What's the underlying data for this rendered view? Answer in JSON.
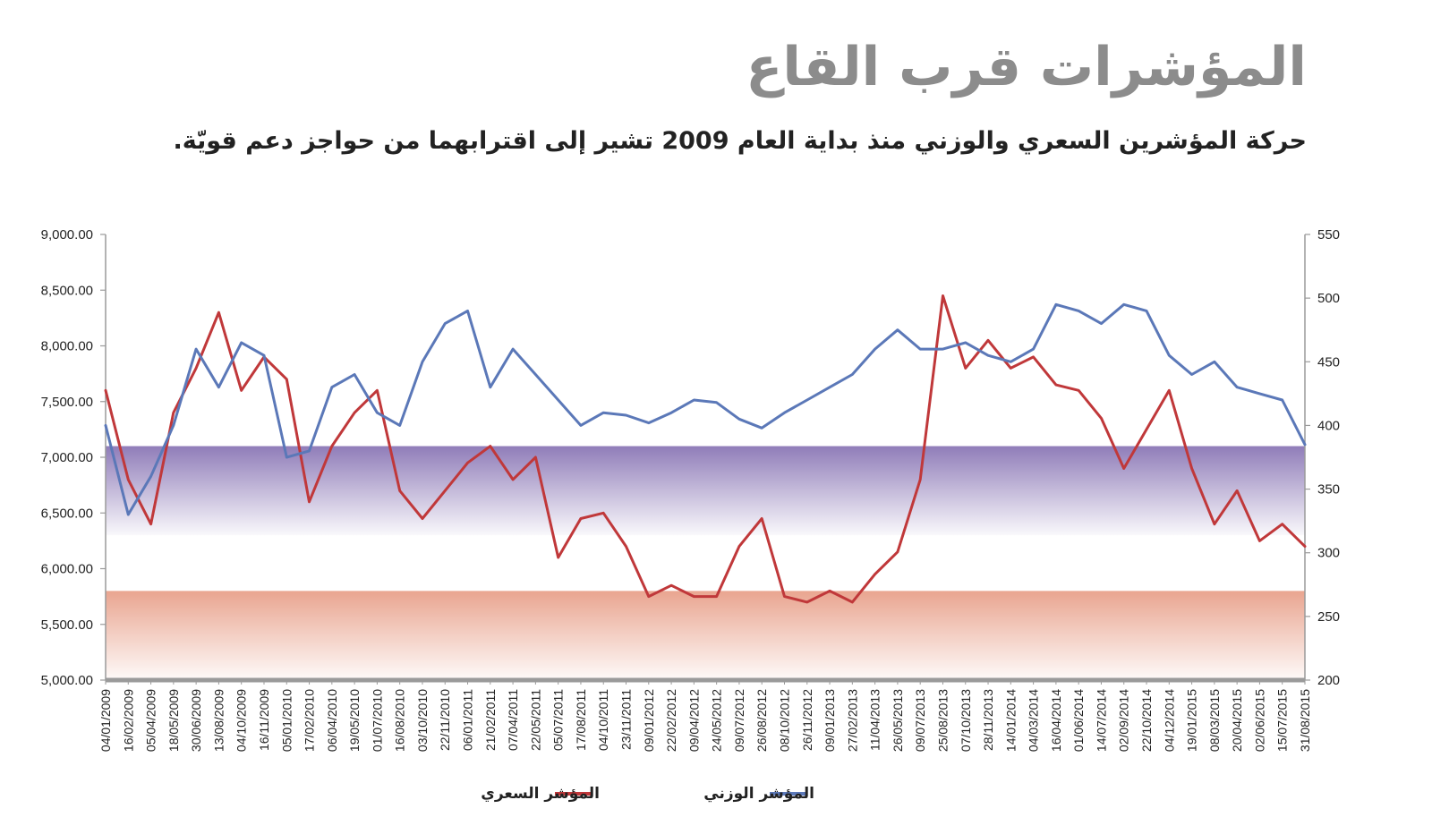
{
  "header": {
    "title": "المؤشرات قرب القاع",
    "subtitle": "حركة المؤشرين السعري والوزني منذ بداية العام 2009 تشير إلى اقترابهما من حواجز دعم قويّة."
  },
  "chart_data": {
    "type": "line",
    "title": "المؤشرات قرب القاع",
    "subtitle": "حركة المؤشرين السعري والوزني منذ بداية العام 2009 تشير إلى اقترابهما من حواجز دعم قويّة.",
    "x_labels": [
      "04/01/2009",
      "16/02/2009",
      "05/04/2009",
      "18/05/2009",
      "30/06/2009",
      "13/08/2009",
      "04/10/2009",
      "16/11/2009",
      "05/01/2010",
      "17/02/2010",
      "06/04/2010",
      "19/05/2010",
      "01/07/2010",
      "16/08/2010",
      "03/10/2010",
      "22/11/2010",
      "06/01/2011",
      "21/02/2011",
      "07/04/2011",
      "22/05/2011",
      "05/07/2011",
      "17/08/2011",
      "04/10/2011",
      "23/11/2011",
      "09/01/2012",
      "22/02/2012",
      "09/04/2012",
      "24/05/2012",
      "09/07/2012",
      "26/08/2012",
      "08/10/2012",
      "26/11/2012",
      "09/01/2013",
      "27/02/2013",
      "11/04/2013",
      "26/05/2013",
      "09/07/2013",
      "25/08/2013",
      "07/10/2013",
      "28/11/2013",
      "14/01/2014",
      "04/03/2014",
      "16/04/2014",
      "01/06/2014",
      "14/07/2014",
      "02/09/2014",
      "22/10/2014",
      "04/12/2014",
      "19/01/2015",
      "08/03/2015",
      "20/04/2015",
      "02/06/2015",
      "15/07/2015",
      "31/08/2015"
    ],
    "y_left": {
      "min": 5000,
      "max": 9000,
      "step": 500,
      "tick_labels": [
        "5,000.00",
        "5,500.00",
        "6,000.00",
        "6,500.00",
        "7,000.00",
        "7,500.00",
        "8,000.00",
        "8,500.00",
        "9,000.00"
      ]
    },
    "y_right": {
      "min": 200,
      "max": 550,
      "step": 50,
      "tick_labels": [
        "200",
        "250",
        "300",
        "350",
        "400",
        "450",
        "500",
        "550"
      ]
    },
    "bands": [
      {
        "axis": "left",
        "from": 5000,
        "to": 5800,
        "color": "#e8a08a"
      },
      {
        "axis": "left",
        "from": 6300,
        "to": 7100,
        "color": "#8a76b5"
      }
    ],
    "series": [
      {
        "name": "المؤشر السعري",
        "axis": "left",
        "color": "#c0383a",
        "values": [
          7600,
          6800,
          6400,
          7400,
          7800,
          8300,
          7600,
          7900,
          7700,
          6600,
          7100,
          7400,
          7600,
          6700,
          6450,
          6700,
          6950,
          7100,
          6800,
          7000,
          6100,
          6450,
          6500,
          6200,
          5750,
          5850,
          5750,
          5750,
          6200,
          6450,
          5750,
          5700,
          5800,
          5700,
          5950,
          6150,
          6800,
          8450,
          7800,
          8050,
          7800,
          7900,
          7650,
          7600,
          7350,
          6900,
          7250,
          7600,
          6900,
          6400,
          6700,
          6250,
          6400,
          6200
        ]
      },
      {
        "name": "المؤشر الوزني",
        "axis": "right",
        "color": "#5b78b8",
        "values": [
          400,
          330,
          360,
          400,
          460,
          430,
          465,
          455,
          375,
          380,
          430,
          440,
          410,
          400,
          450,
          480,
          490,
          430,
          460,
          440,
          420,
          400,
          410,
          408,
          402,
          410,
          420,
          418,
          405,
          398,
          410,
          420,
          430,
          440,
          460,
          475,
          460,
          460,
          465,
          455,
          450,
          460,
          495,
          490,
          480,
          495,
          490,
          455,
          440,
          450,
          430,
          425,
          420,
          385
        ]
      }
    ]
  }
}
